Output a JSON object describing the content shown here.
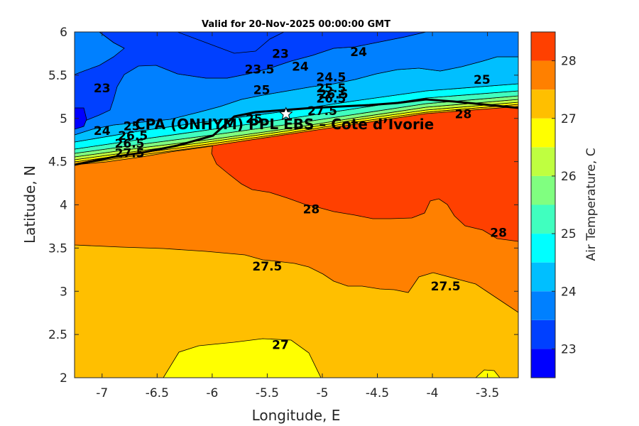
{
  "chart_data": {
    "type": "contourf",
    "title": "Valid for 20-Nov-2025 00:00:00 GMT",
    "xlabel": "Longitude, E",
    "ylabel": "Latitude, N",
    "xlim": [
      -7.25,
      -3.22
    ],
    "ylim": [
      2,
      6
    ],
    "xticks": [
      -7,
      -6.5,
      -6,
      -5.5,
      -5,
      -4.5,
      -4,
      -3.5
    ],
    "yticks": [
      2,
      2.5,
      3,
      3.5,
      4,
      4.5,
      5,
      5.5,
      6
    ],
    "colorbar": {
      "label": "Air Temperature, C",
      "range": [
        22.5,
        28.5
      ],
      "ticks": [
        23,
        24,
        25,
        26,
        27,
        28
      ],
      "levels": [
        22.5,
        23,
        23.5,
        24,
        24.5,
        25,
        25.5,
        26,
        26.5,
        27,
        27.5,
        28,
        28.5
      ],
      "colors": [
        "#0000ff",
        "#0040ff",
        "#0080ff",
        "#00bfff",
        "#00ffff",
        "#40ffbf",
        "#80ff80",
        "#bfff40",
        "#ffff00",
        "#ffbf00",
        "#ff8000",
        "#ff4000"
      ]
    },
    "site": {
      "name": "CPA (ONHYM) PPL EBS  – Cote d’Ivorie",
      "lon": -5.33,
      "lat": 5.05
    },
    "contour_labels": [
      {
        "text": "23",
        "lon": -5.38,
        "lat": 5.75
      },
      {
        "text": "23",
        "lon": -7.0,
        "lat": 5.35
      },
      {
        "text": "24",
        "lon": -4.67,
        "lat": 5.77
      },
      {
        "text": "23.5",
        "lon": -5.57,
        "lat": 5.57
      },
      {
        "text": "24",
        "lon": -5.2,
        "lat": 5.6
      },
      {
        "text": "24.5",
        "lon": -4.92,
        "lat": 5.48
      },
      {
        "text": "25",
        "lon": -3.55,
        "lat": 5.45
      },
      {
        "text": "25",
        "lon": -5.55,
        "lat": 5.33
      },
      {
        "text": "25.5",
        "lon": -4.92,
        "lat": 5.35
      },
      {
        "text": "26.5",
        "lon": -4.9,
        "lat": 5.28
      },
      {
        "text": "26.5",
        "lon": -4.92,
        "lat": 5.23
      },
      {
        "text": "27.5",
        "lon": -5.0,
        "lat": 5.09
      },
      {
        "text": "28",
        "lon": -3.72,
        "lat": 5.05
      },
      {
        "text": "24",
        "lon": -7.0,
        "lat": 4.86
      },
      {
        "text": "25",
        "lon": -6.73,
        "lat": 4.91
      },
      {
        "text": "26.5",
        "lon": -6.72,
        "lat": 4.8
      },
      {
        "text": "26.5",
        "lon": -6.75,
        "lat": 4.71
      },
      {
        "text": "27.5",
        "lon": -6.75,
        "lat": 4.6
      },
      {
        "text": "28",
        "lon": -5.1,
        "lat": 3.95
      },
      {
        "text": "28",
        "lon": -3.4,
        "lat": 3.68
      },
      {
        "text": "27.5",
        "lon": -5.5,
        "lat": 3.29
      },
      {
        "text": "27.5",
        "lon": -3.88,
        "lat": 3.06
      },
      {
        "text": "27",
        "lon": -5.38,
        "lat": 2.38
      },
      {
        "text": "25",
        "lon": -5.62,
        "lat": 5.0
      }
    ]
  }
}
